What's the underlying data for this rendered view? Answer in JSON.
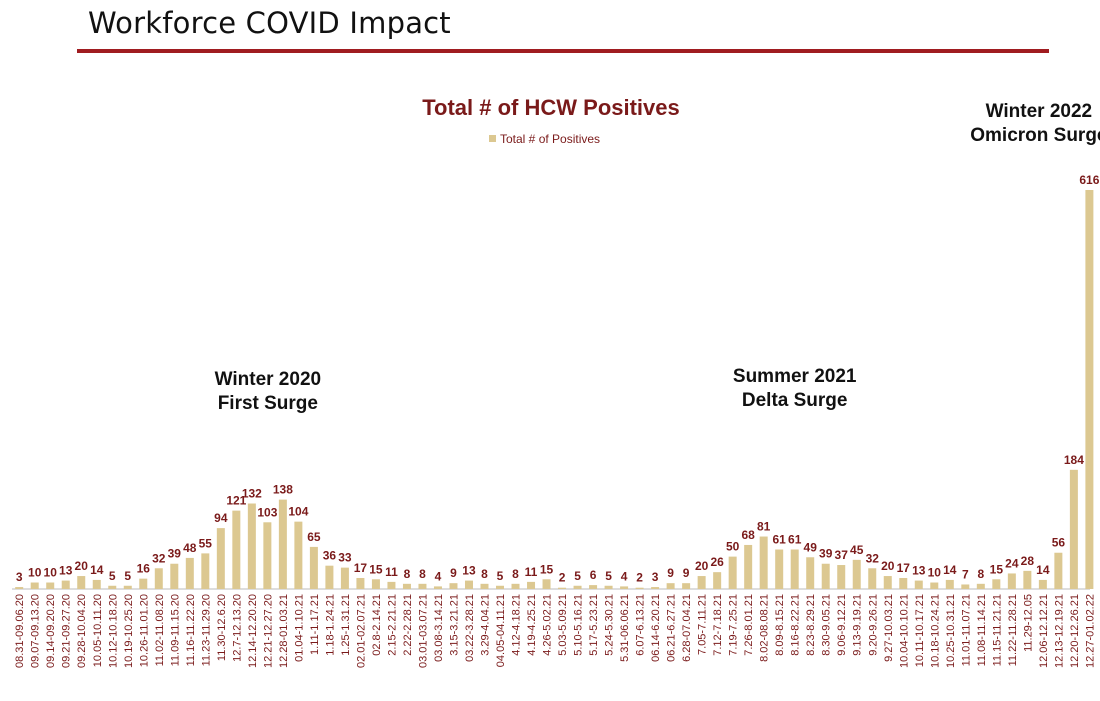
{
  "page": {
    "title": "Workforce COVID Impact",
    "rule_color": "#a01c20"
  },
  "colors": {
    "bar": "#dcc891",
    "label": "#7a1a1a",
    "title": "#7a1a1a",
    "axis": "#bbbbbb"
  },
  "chart_data": {
    "type": "bar",
    "title": "Total # of HCW Positives",
    "legend": {
      "position": "top-center",
      "entries": [
        "Total # of Positives"
      ]
    },
    "xlabel": "",
    "ylabel": "",
    "ylim": [
      0,
      660
    ],
    "grid": false,
    "categories": [
      "08.31-09.06.20",
      "09.07-09.13.20",
      "09.14-09.20.20",
      "09.21-09.27.20",
      "09.28-10.04.20",
      "10.05-10.11.20",
      "10.12-10.18.20",
      "10.19-10.25.20",
      "10.26-11.01.20",
      "11.02-11.08.20",
      "11.09-11.15.20",
      "11.16-11.22.20",
      "11.23-11.29.20",
      "11.30-12.6.20",
      "12.7-12.13.20",
      "12.14-12.20.20",
      "12.21-12.27.20",
      "12.28-01.03.21",
      "01.04-1.10.21",
      "1.11-1.17.21",
      "1.18-1.24.21",
      "1.25-1.31.21",
      "02.01-02.07.21",
      "02.8-2.14.21",
      "2.15-2.21.21",
      "2.22-2.28.21",
      "03.01-03.07.21",
      "03.08-3.14.21",
      "3.15-3.21.21",
      "03.22-3.28.21",
      "3.29-4.04.21",
      "04.05-04.11.21",
      "4.12-4.18.21",
      "4.19-4.25.21",
      "4.26-5.02.21",
      "5.03-5.09.21",
      "5.10-5.16.21",
      "5.17-5.23.21",
      "5.24-5.30.21",
      "5.31-06.06.21",
      "6.07-6.13.21",
      "06.14-6.20.21",
      "06.21-6.27.21",
      "6.28-07.04.21",
      "7.05-7.11.21",
      "7.12-7.18.21",
      "7.19-7.25.21",
      "7.26-8.01.21",
      "8.02-08.08.21",
      "8.09-8.15.21",
      "8.16-8.22.21",
      "8.23-8.29.21",
      "8.30-9.05.21",
      "9.06-9.12.21",
      "9.13-9.19.21",
      "9.20-9.26.21",
      "9.27-10.03.21",
      "10.04-10.10.21",
      "10.11-10.17.21",
      "10.18-10.24.21",
      "10.25-10.31.21",
      "11.01-11.07.21",
      "11.08-11.14.21",
      "11.15-11.21.21",
      "11.22-11.28.21",
      "11.29-12.05",
      "12.06-12.12.21",
      "12.13-12.19.21",
      "12.20-12.26.21",
      "12.27-01.02.22"
    ],
    "series": [
      {
        "name": "Total # of Positives",
        "values": [
          3,
          10,
          10,
          13,
          20,
          14,
          5,
          5,
          16,
          32,
          39,
          48,
          55,
          94,
          121,
          132,
          103,
          138,
          104,
          65,
          36,
          33,
          17,
          15,
          11,
          8,
          8,
          4,
          9,
          13,
          8,
          5,
          8,
          11,
          15,
          2,
          5,
          6,
          5,
          4,
          2,
          3,
          9,
          9,
          20,
          26,
          50,
          68,
          81,
          61,
          61,
          49,
          39,
          37,
          45,
          32,
          20,
          17,
          13,
          10,
          14,
          7,
          8,
          15,
          24,
          28,
          14,
          56,
          184,
          616
        ]
      }
    ],
    "annotations": [
      {
        "id": "winter-2020",
        "lines": [
          "Winter 2020",
          "First Surge"
        ],
        "anchor_category": "12.14-12.20.20"
      },
      {
        "id": "summer-2021",
        "lines": [
          "Summer 2021",
          "Delta Surge"
        ],
        "anchor_category": "8.16-8.22.21"
      },
      {
        "id": "winter-2022",
        "lines": [
          "Winter 2022",
          "Omicron Surge"
        ],
        "anchor_category": "12.20-12.26.21"
      }
    ]
  }
}
